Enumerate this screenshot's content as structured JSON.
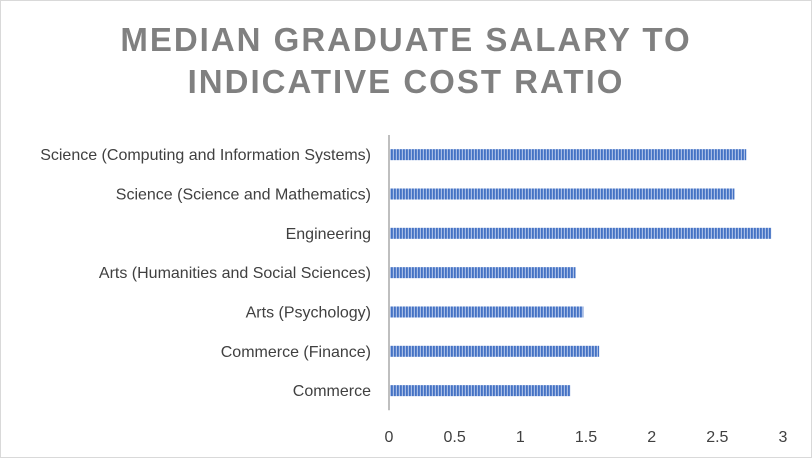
{
  "chart_data": {
    "type": "bar",
    "orientation": "horizontal",
    "title_lines": [
      "MEDIAN GRADUATE SALARY TO",
      "INDICATIVE COST RATIO"
    ],
    "categories": [
      "Science (Computing and Information Systems)",
      "Science (Science and Mathematics)",
      "Engineering",
      "Arts (Humanities and Social Sciences)",
      "Arts (Psychology)",
      "Commerce (Finance)",
      "Commerce"
    ],
    "values": [
      2.72,
      2.63,
      2.91,
      1.42,
      1.48,
      1.6,
      1.38
    ],
    "xlim": [
      0,
      3
    ],
    "xticks": [
      "0",
      "0.5",
      "1",
      "1.5",
      "2",
      "2.5",
      "3"
    ],
    "bar_color": "#4472c4",
    "bar_pattern": "vertical-stripes",
    "grid": false,
    "legend": "none"
  }
}
